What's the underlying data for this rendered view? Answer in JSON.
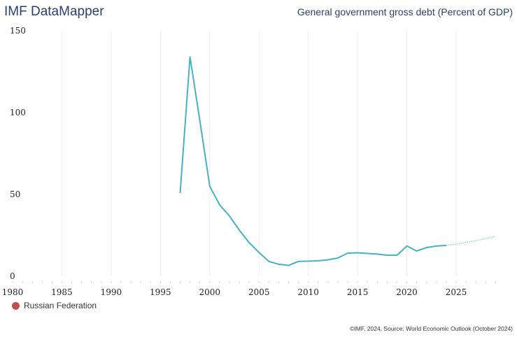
{
  "header": {
    "brand": "IMF DataMapper",
    "title": "General government gross debt (Percent of GDP)"
  },
  "legend": {
    "label": "Russian Federation",
    "color": "#c0504d"
  },
  "footer": {
    "source": "©IMF, 2024, Source: World Economic Outlook (October 2024)"
  },
  "chart_data": {
    "type": "line",
    "title": "General government gross debt (Percent of GDP)",
    "xlabel": "",
    "ylabel": "",
    "xlim": [
      1980,
      2029
    ],
    "ylim": [
      0,
      150
    ],
    "xticks": [
      "1980",
      "1985",
      "1990",
      "1995",
      "2000",
      "2005",
      "2010",
      "2015",
      "2020",
      "2025"
    ],
    "yticks": [
      "0",
      "50",
      "100",
      "150"
    ],
    "grid": "vertical",
    "legend_position": "bottom-left",
    "line_color": "#45b3c3",
    "series": [
      {
        "name": "Russian Federation",
        "x": [
          1997,
          1998,
          1999,
          2000,
          2001,
          2002,
          2003,
          2004,
          2005,
          2006,
          2007,
          2008,
          2009,
          2010,
          2011,
          2012,
          2013,
          2014,
          2015,
          2016,
          2017,
          2018,
          2019,
          2020,
          2021,
          2022,
          2023,
          2024
        ],
        "values": [
          50.8,
          134,
          95,
          55,
          43.6,
          36.8,
          28.2,
          20.5,
          14.5,
          9.0,
          7.3,
          6.6,
          9.0,
          9.2,
          9.4,
          10.0,
          11.1,
          14.1,
          14.3,
          13.9,
          13.5,
          12.8,
          12.8,
          18.4,
          15.4,
          17.5,
          18.4,
          18.8
        ]
      },
      {
        "name": "Russian Federation (projection)",
        "x": [
          2024,
          2025,
          2026,
          2027,
          2028,
          2029
        ],
        "values": [
          18.8,
          19.6,
          20.6,
          21.7,
          23.0,
          24.4
        ],
        "style": "dotted"
      }
    ]
  }
}
